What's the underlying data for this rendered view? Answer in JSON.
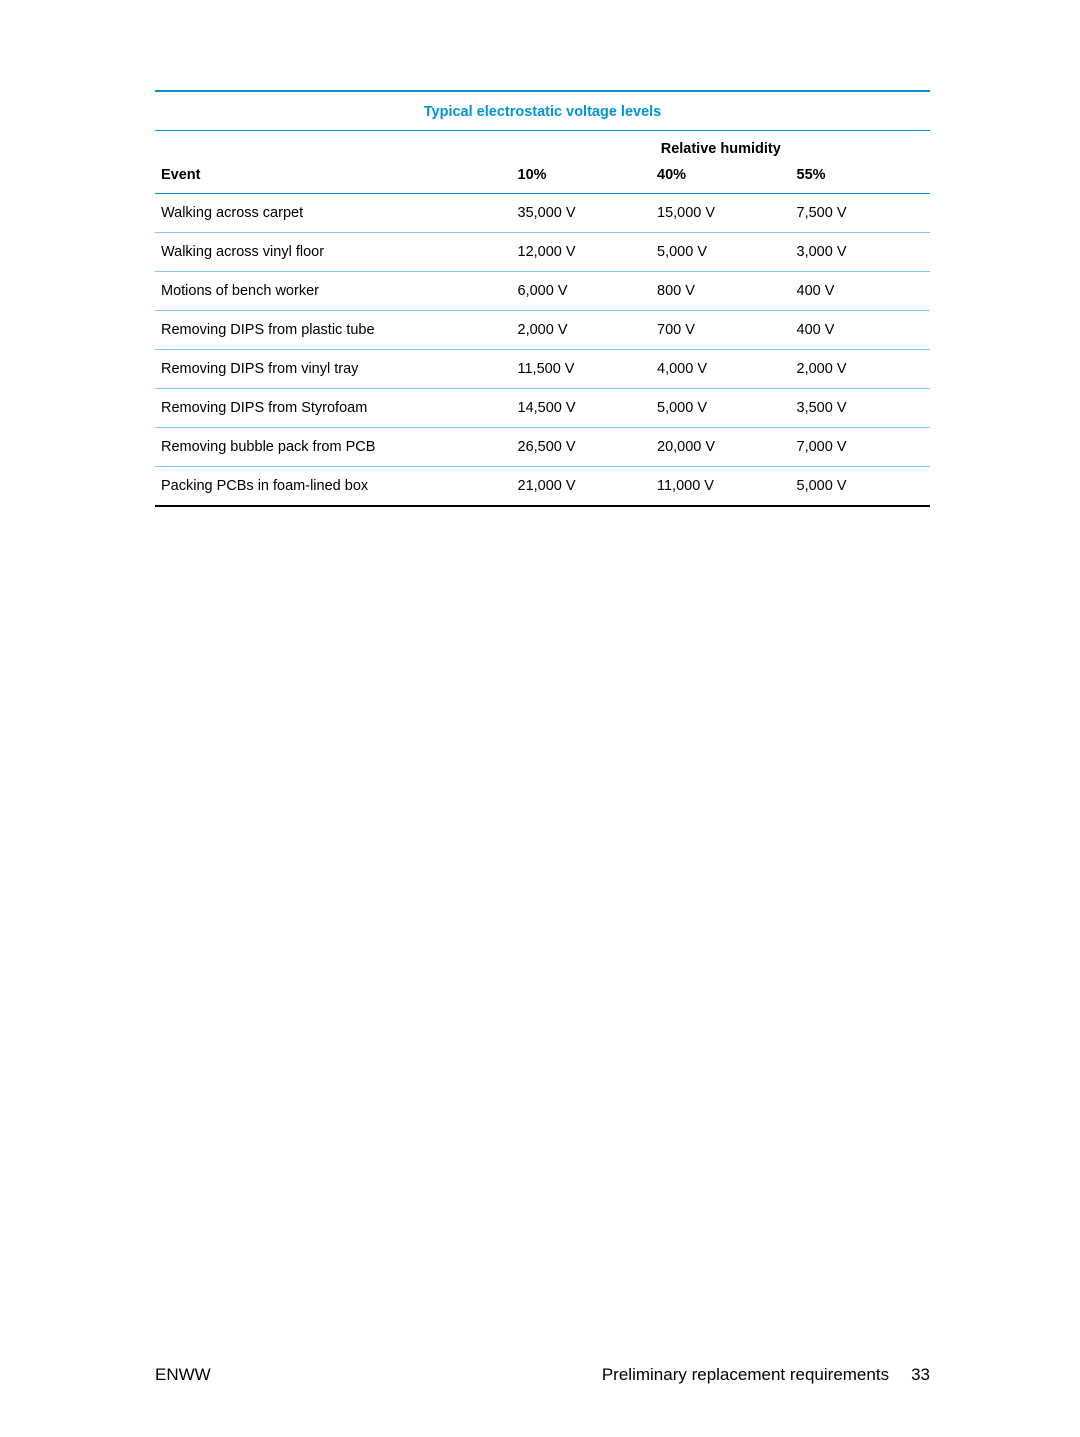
{
  "colors": {
    "accent": "#0096d6",
    "header_border": "#0096d6",
    "row_border": "#7fcaeb",
    "table_bottom": "#000000",
    "text": "#000000"
  },
  "table": {
    "title": "Typical electrostatic voltage levels",
    "super_header": "Relative humidity",
    "columns": {
      "event": "Event",
      "h10": "10%",
      "h40": "40%",
      "h55": "55%"
    },
    "rows": [
      {
        "event": "Walking across carpet",
        "h10": "35,000 V",
        "h40": "15,000 V",
        "h55": "7,500 V"
      },
      {
        "event": "Walking across vinyl floor",
        "h10": "12,000 V",
        "h40": "5,000 V",
        "h55": "3,000 V"
      },
      {
        "event": "Motions of bench worker",
        "h10": "6,000 V",
        "h40": "800 V",
        "h55": "400 V"
      },
      {
        "event": "Removing DIPS from plastic tube",
        "h10": "2,000 V",
        "h40": "700 V",
        "h55": "400 V"
      },
      {
        "event": "Removing DIPS from vinyl tray",
        "h10": "11,500 V",
        "h40": "4,000 V",
        "h55": "2,000 V"
      },
      {
        "event": "Removing DIPS from Styrofoam",
        "h10": "14,500 V",
        "h40": "5,000 V",
        "h55": "3,500 V"
      },
      {
        "event": "Removing bubble pack from PCB",
        "h10": "26,500 V",
        "h40": "20,000 V",
        "h55": "7,000 V"
      },
      {
        "event": "Packing PCBs in foam-lined box",
        "h10": "21,000 V",
        "h40": "11,000 V",
        "h55": "5,000 V"
      }
    ]
  },
  "footer": {
    "left": "ENWW",
    "section": "Preliminary replacement requirements",
    "page": "33"
  }
}
